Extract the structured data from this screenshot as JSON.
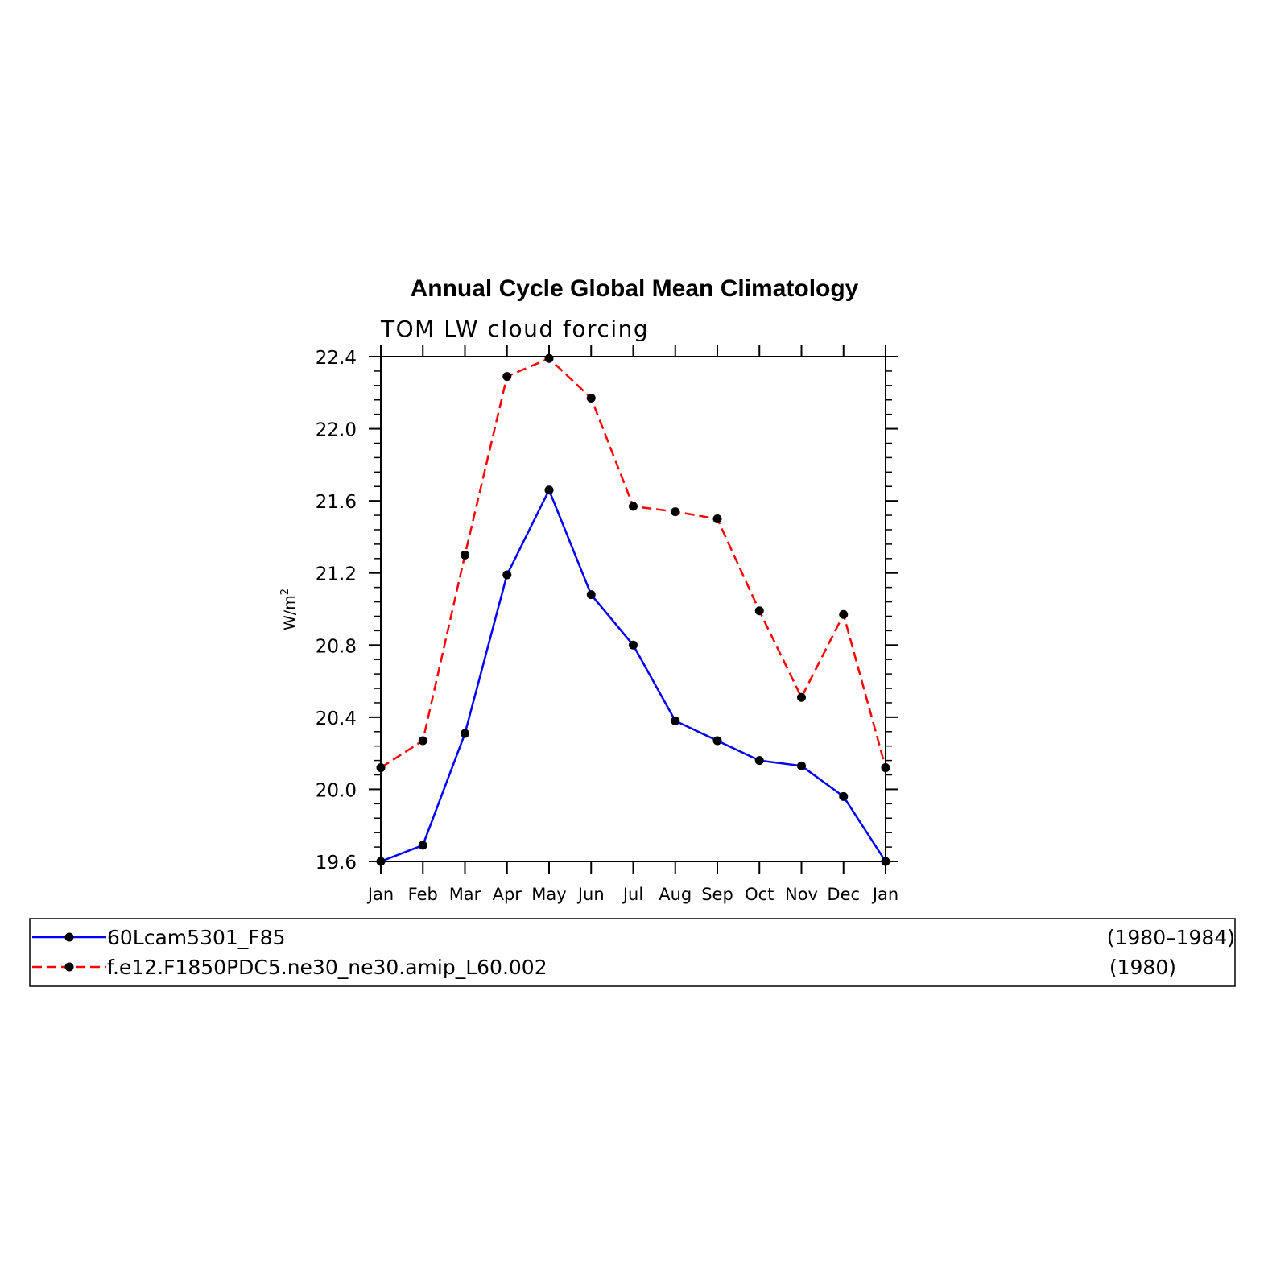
{
  "chart_data": {
    "type": "line",
    "title": "Annual Cycle Global Mean Climatology",
    "subtitle": "TOM LW cloud forcing",
    "ylabel": "W/m",
    "ylabel_superscript": "2",
    "categories": [
      "Jan",
      "Feb",
      "Mar",
      "Apr",
      "May",
      "Jun",
      "Jul",
      "Aug",
      "Sep",
      "Oct",
      "Nov",
      "Dec",
      "Jan"
    ],
    "ylim": [
      19.6,
      22.4
    ],
    "yticks": [
      "19.6",
      "20.0",
      "20.4",
      "20.8",
      "21.2",
      "21.6",
      "22.0",
      "22.4"
    ],
    "grid": false,
    "legend_position": "bottom",
    "series": [
      {
        "name": "60Lcam5301_F85",
        "years": "(1980–1984)",
        "color": "#0000ff",
        "dash": "solid",
        "values": [
          19.6,
          19.69,
          20.31,
          21.19,
          21.66,
          21.08,
          20.8,
          20.38,
          20.27,
          20.16,
          20.13,
          19.96,
          19.6
        ]
      },
      {
        "name": "f.e12.F1850PDC5.ne30_ne30.amip_L60.002",
        "years": "(1980)",
        "color": "#ff0000",
        "dash": "dashed",
        "values": [
          20.12,
          20.27,
          21.3,
          22.29,
          22.39,
          22.17,
          21.57,
          21.54,
          21.5,
          20.99,
          20.51,
          20.97,
          20.12
        ]
      }
    ]
  }
}
